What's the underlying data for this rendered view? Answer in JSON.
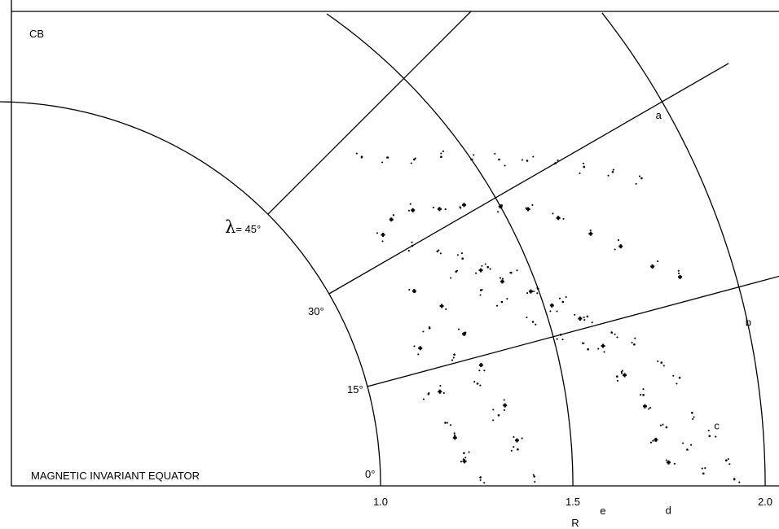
{
  "header": {
    "cropped_caption": "..."
  },
  "chart_data": {
    "type": "scatter",
    "title": "",
    "corner_label": "CB",
    "xlabel": "R",
    "equator_label": "MAGNETIC INVARIANT EQUATOR",
    "lambda_symbol": "λ",
    "lambda_prefix": "= ",
    "x_ticks": [
      "1.0",
      "1.5",
      "2.0"
    ],
    "latitude_ticks": [
      "0°",
      "15°",
      "30°",
      "45°"
    ],
    "latitude_values": [
      0,
      15,
      30,
      45
    ],
    "radius_values": [
      1.0,
      1.5,
      2.0
    ],
    "curve_labels": [
      {
        "text": "a",
        "R": 1.97,
        "lat": 29
      },
      {
        "text": "b",
        "R": 2.0,
        "lat": 12
      },
      {
        "text": "c",
        "R": 1.88,
        "lat": 4.5
      },
      {
        "text": "e",
        "R": 1.58,
        "lat": -2.7
      },
      {
        "text": "d",
        "R": 1.75,
        "lat": -2.4
      }
    ],
    "series": [
      {
        "marker": "dot",
        "description_points": [
          [
            1.28,
            42
          ],
          [
            1.33,
            40
          ],
          [
            1.38,
            38
          ],
          [
            1.44,
            36.5
          ],
          [
            1.5,
            34.5
          ],
          [
            1.56,
            33
          ],
          [
            1.62,
            31.5
          ],
          [
            1.68,
            30
          ],
          [
            1.74,
            28.5
          ],
          [
            1.8,
            27
          ],
          [
            1.86,
            25.5
          ],
          [
            1.25,
            30
          ],
          [
            1.3,
            28
          ],
          [
            1.35,
            26
          ],
          [
            1.4,
            24
          ],
          [
            1.45,
            22.5
          ],
          [
            1.5,
            20
          ],
          [
            1.55,
            18
          ],
          [
            1.6,
            16
          ],
          [
            1.65,
            14
          ],
          [
            1.7,
            12.5
          ],
          [
            1.76,
            10.5
          ],
          [
            1.8,
            9
          ],
          [
            1.32,
            25
          ],
          [
            1.36,
            22
          ],
          [
            1.4,
            20
          ],
          [
            1.46,
            17
          ],
          [
            1.52,
            15
          ],
          [
            1.58,
            13
          ],
          [
            1.64,
            10
          ],
          [
            1.7,
            8
          ],
          [
            1.75,
            5
          ],
          [
            1.8,
            3
          ],
          [
            1.84,
            1
          ],
          [
            1.2,
            20
          ],
          [
            1.24,
            16
          ],
          [
            1.28,
            12
          ],
          [
            1.32,
            8
          ],
          [
            1.36,
            4
          ],
          [
            1.4,
            1
          ],
          [
            1.15,
            12
          ],
          [
            1.18,
            8
          ],
          [
            1.22,
            4
          ],
          [
            1.26,
            1
          ],
          [
            1.82,
            6
          ],
          [
            1.86,
            4
          ],
          [
            1.9,
            2
          ],
          [
            1.92,
            0.5
          ]
        ]
      },
      {
        "marker": "plus",
        "description_points": [
          [
            1.2,
            33
          ],
          [
            1.24,
            34
          ],
          [
            1.3,
            33.5
          ],
          [
            1.36,
            32
          ],
          [
            1.42,
            31
          ],
          [
            1.5,
            29
          ],
          [
            1.56,
            27.5
          ],
          [
            1.62,
            25.5
          ],
          [
            1.68,
            23
          ],
          [
            1.74,
            21
          ],
          [
            1.8,
            18.5
          ],
          [
            1.86,
            17
          ],
          [
            1.38,
            24
          ],
          [
            1.42,
            22
          ],
          [
            1.48,
            20
          ],
          [
            1.52,
            18
          ],
          [
            1.58,
            16
          ],
          [
            1.62,
            13
          ],
          [
            1.66,
            10
          ],
          [
            1.7,
            7
          ],
          [
            1.72,
            4
          ],
          [
            1.75,
            2
          ],
          [
            1.2,
            25
          ],
          [
            1.25,
            22
          ],
          [
            1.28,
            18
          ],
          [
            1.3,
            14
          ],
          [
            1.34,
            9
          ],
          [
            1.36,
            5
          ],
          [
            1.16,
            18
          ],
          [
            1.18,
            12
          ],
          [
            1.2,
            6
          ],
          [
            1.22,
            3
          ]
        ]
      }
    ]
  }
}
